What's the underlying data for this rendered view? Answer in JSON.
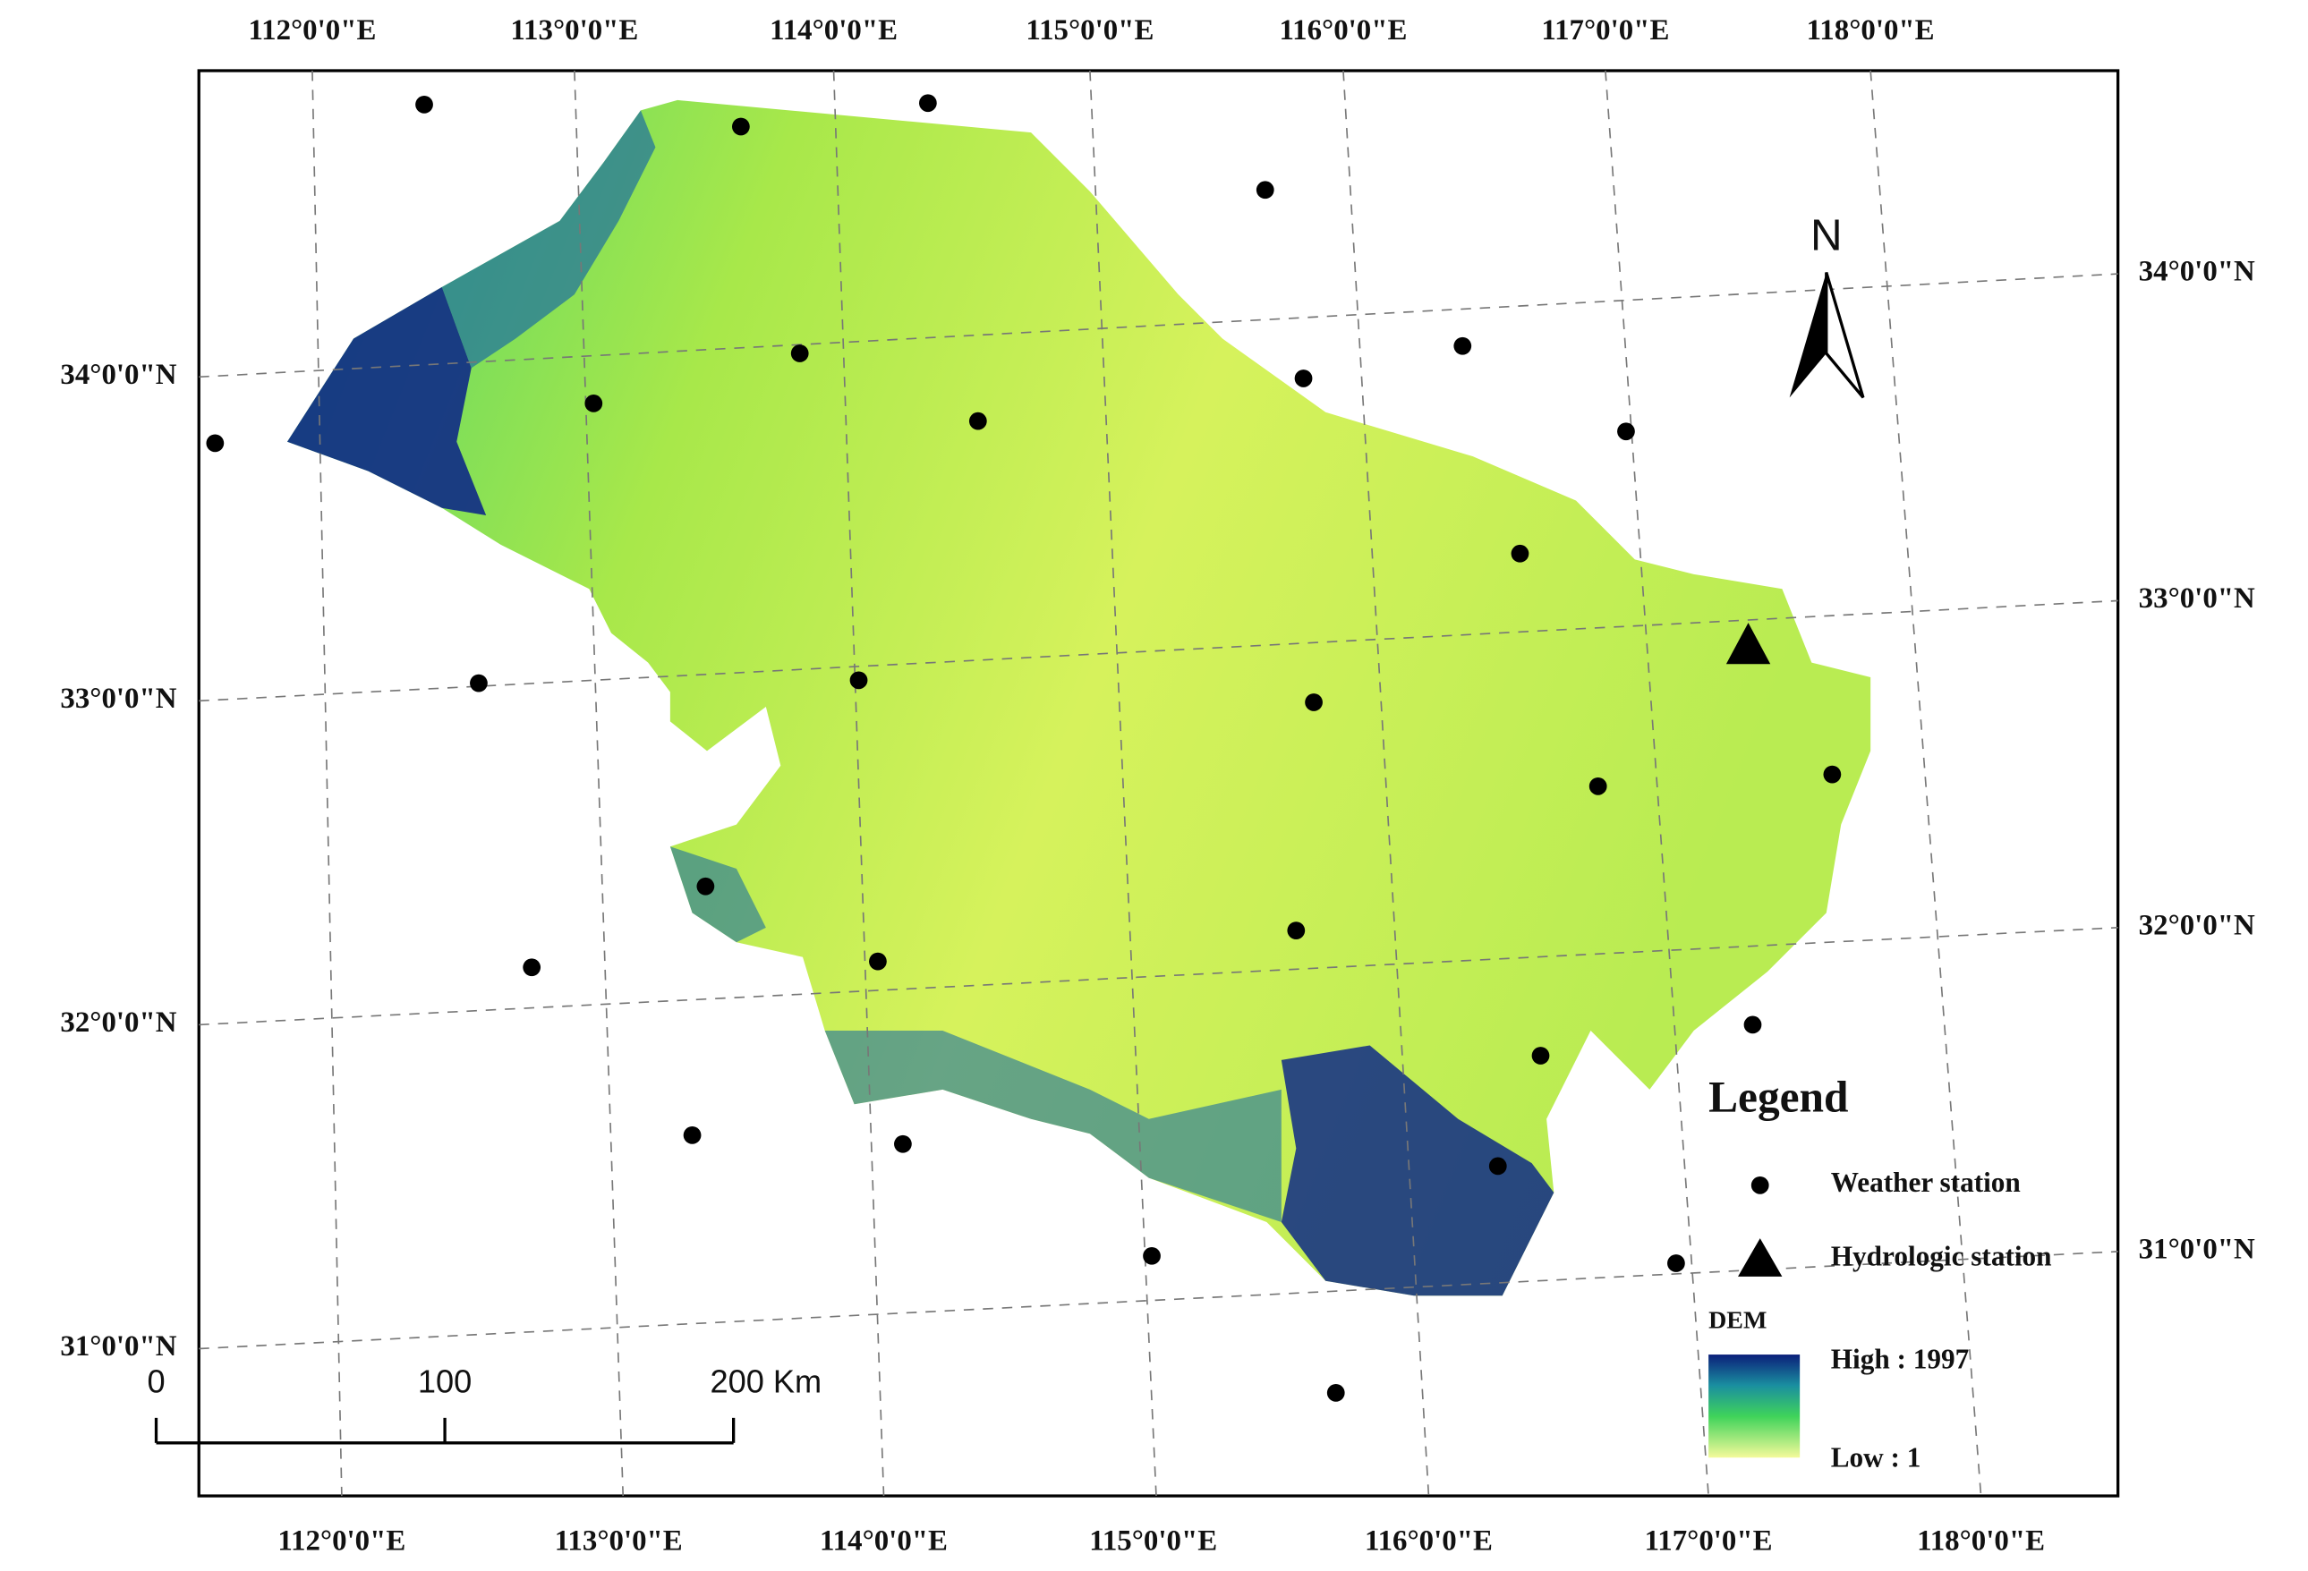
{
  "top_labels": [
    "112°0'0\"E",
    "113°0'0\"E",
    "114°0'0\"E",
    "115°0'0\"E",
    "116°0'0\"E",
    "117°0'0\"E",
    "118°0'0\"E"
  ],
  "bottom_labels": [
    "112°0'0\"E",
    "113°0'0\"E",
    "114°0'0\"E",
    "115°0'0\"E",
    "116°0'0\"E",
    "117°0'0\"E",
    "118°0'0\"E"
  ],
  "left_labels": [
    "34°0'0\"N",
    "33°0'0\"N",
    "32°0'0\"N",
    "31°0'0\"N"
  ],
  "right_labels": [
    "34°0'0\"N",
    "33°0'0\"N",
    "32°0'0\"N",
    "31°0'0\"N"
  ],
  "north": "N",
  "scale_bar": {
    "labels": [
      "0",
      "100",
      "200 Km"
    ]
  },
  "legend": {
    "title": "Legend",
    "items": [
      "Weather station",
      "Hydrologic station"
    ],
    "dem_title": "DEM",
    "high": "High : 1997",
    "low": "Low : 1"
  }
}
